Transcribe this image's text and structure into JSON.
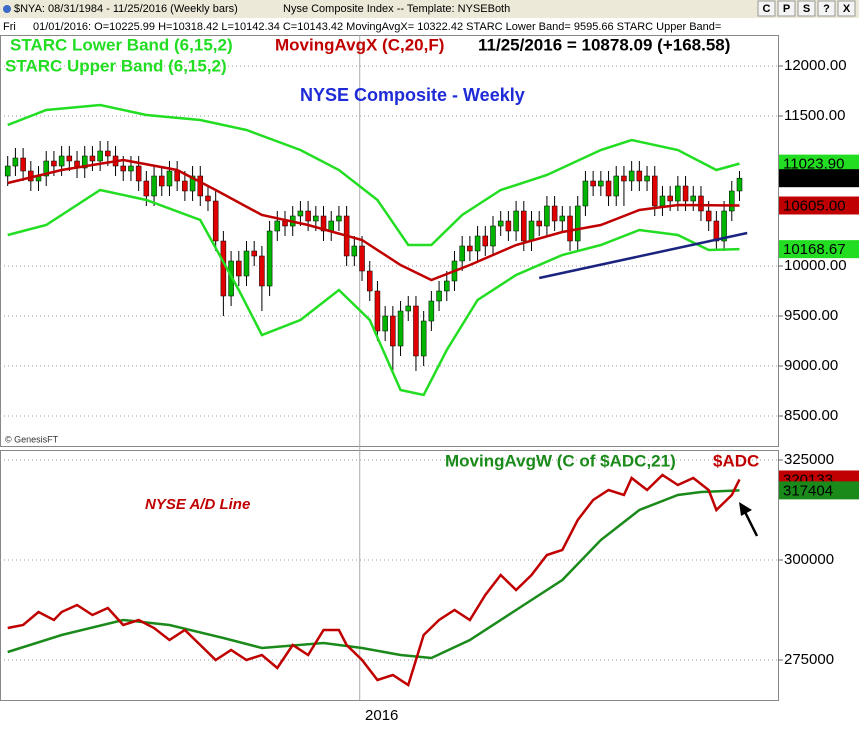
{
  "header": {
    "symbol": "$NYA: 08/31/1984 - 11/25/2016 (Weekly bars)",
    "template": "Nyse Composite Index -- Template: NYSEBoth",
    "day": "Fri",
    "cursor": "01/01/2016: O=10225.99 H=10318.42 L=10142.34 C=10143.42 MovingAvgX= 10322.42 STARC Lower Band= 9595.66 STARC Upper Band=",
    "buttons": [
      "C",
      "P",
      "S",
      "?",
      "X"
    ]
  },
  "chart_data": [
    {
      "type": "candlestick",
      "title": "NYSE Composite - Weekly",
      "readout": "11/25/2016 = 10878.09 (+168.58)",
      "watermark": "© GenesisFT",
      "up_color": "#00b400",
      "down_color": "#e00000",
      "open": [
        10900,
        11000,
        11080,
        10950,
        10850,
        10900,
        11050,
        11000,
        11100,
        11050,
        10980,
        11100,
        11050,
        11150,
        11100,
        11000,
        10950,
        11000,
        10850,
        10700,
        10900,
        10800,
        10950,
        10850,
        10750,
        10900,
        10700,
        10650,
        10250,
        9700,
        10050,
        9900,
        10150,
        10100,
        9800,
        10350,
        10450,
        10400,
        10500,
        10550,
        10450,
        10500,
        10350,
        10450,
        10500,
        10100,
        10200,
        9950,
        9750,
        9350,
        9500,
        9200,
        9550,
        9600,
        9100,
        9450,
        9650,
        9750,
        9850,
        10050,
        10200,
        10150,
        10300,
        10200,
        10400,
        10450,
        10350,
        10550,
        10250,
        10450,
        10400,
        10600,
        10450,
        10500,
        10250,
        10600,
        10850,
        10800,
        10850,
        10700,
        10900,
        10850,
        10950,
        10850,
        10900,
        10600,
        10700,
        10650,
        10800,
        10650,
        10700,
        10550,
        10450,
        10250,
        10550,
        10750
      ],
      "high": [
        11100,
        11180,
        11180,
        11050,
        11000,
        11150,
        11150,
        11200,
        11200,
        11150,
        11200,
        11200,
        11250,
        11250,
        11200,
        11100,
        11100,
        11100,
        10950,
        11000,
        11000,
        11050,
        11050,
        10950,
        11000,
        11000,
        10800,
        10750,
        10350,
        10150,
        10150,
        10250,
        10250,
        10200,
        10450,
        10550,
        10550,
        10600,
        10650,
        10650,
        10600,
        10600,
        10550,
        10600,
        10600,
        10300,
        10300,
        10050,
        9850,
        9600,
        9600,
        9650,
        9700,
        9700,
        9550,
        9750,
        9850,
        9950,
        10150,
        10300,
        10300,
        10400,
        10400,
        10500,
        10550,
        10550,
        10650,
        10650,
        10550,
        10550,
        10700,
        10700,
        10600,
        10600,
        10700,
        10950,
        10950,
        10950,
        10950,
        11000,
        11000,
        11050,
        11050,
        11000,
        11000,
        10800,
        10800,
        10900,
        10900,
        10800,
        10800,
        10650,
        10550,
        10650,
        10850,
        10950
      ],
      "low": [
        10800,
        10900,
        10850,
        10750,
        10750,
        10800,
        10900,
        10900,
        10950,
        10880,
        10880,
        10950,
        10950,
        11000,
        10900,
        10850,
        10850,
        10750,
        10600,
        10600,
        10700,
        10700,
        10750,
        10650,
        10650,
        10600,
        10550,
        10150,
        9500,
        9600,
        9800,
        9800,
        10000,
        9550,
        9700,
        10250,
        10300,
        10300,
        10400,
        10350,
        10350,
        10250,
        10250,
        10350,
        10000,
        10000,
        9850,
        9650,
        9250,
        9250,
        8950,
        9100,
        9450,
        8950,
        9000,
        9350,
        9550,
        9650,
        9750,
        9950,
        10050,
        10050,
        10100,
        10100,
        10300,
        10250,
        10250,
        10150,
        10150,
        10300,
        10300,
        10350,
        10350,
        10150,
        10150,
        10500,
        10700,
        10700,
        10600,
        10600,
        10600,
        10750,
        10750,
        10750,
        10500,
        10500,
        10550,
        10550,
        10550,
        10550,
        10450,
        10350,
        10150,
        10150,
        10450,
        10650
      ],
      "close": [
        11000,
        11080,
        10950,
        10850,
        10900,
        11050,
        11000,
        11100,
        11050,
        10980,
        11100,
        11050,
        11150,
        11100,
        11000,
        10950,
        11000,
        10850,
        10700,
        10900,
        10800,
        10950,
        10850,
        10750,
        10900,
        10700,
        10650,
        10250,
        9700,
        10050,
        9900,
        10150,
        10100,
        9800,
        10350,
        10450,
        10400,
        10500,
        10550,
        10450,
        10500,
        10350,
        10450,
        10500,
        10100,
        10200,
        9950,
        9750,
        9350,
        9500,
        9200,
        9550,
        9600,
        9100,
        9450,
        9650,
        9750,
        9850,
        10050,
        10200,
        10150,
        10300,
        10200,
        10400,
        10450,
        10350,
        10550,
        10250,
        10450,
        10400,
        10600,
        10450,
        10500,
        10250,
        10600,
        10850,
        10800,
        10850,
        10700,
        10900,
        10850,
        10950,
        10850,
        10900,
        10600,
        10700,
        10650,
        10800,
        10650,
        10700,
        10550,
        10450,
        10250,
        10550,
        10750,
        10878.09
      ],
      "series": [
        {
          "name": "STARC Lower Band (6,15,2)",
          "color": "#22dd22",
          "x": [
            0,
            5,
            12,
            18,
            25,
            30,
            33,
            38,
            43,
            47,
            51,
            54,
            57,
            61,
            66,
            72,
            77,
            82,
            87,
            91,
            95
          ],
          "values": [
            10310,
            10410,
            10760,
            10660,
            10460,
            9760,
            9310,
            9460,
            9760,
            9460,
            8760,
            8710,
            9160,
            9660,
            9910,
            10110,
            10210,
            10360,
            10310,
            10160,
            10168.67
          ]
        },
        {
          "name": "MovingAvgX (C,20,F)",
          "color": "#c00000",
          "x": [
            0,
            7,
            15,
            22,
            27,
            33,
            39,
            46,
            51,
            55,
            60,
            66,
            72,
            77,
            82,
            87,
            95
          ],
          "values": [
            10830,
            10960,
            11060,
            10960,
            10760,
            10510,
            10410,
            10260,
            10010,
            9860,
            10010,
            10210,
            10340,
            10410,
            10560,
            10610,
            10605
          ],
          "value_labels": [
            null,
            null,
            null,
            null,
            null,
            null,
            null,
            null,
            null,
            null,
            null,
            null,
            null,
            null,
            null,
            null,
            "10605.00"
          ]
        },
        {
          "name": "STARC Upper Band (6,15,2)",
          "color": "#22dd22",
          "x": [
            0,
            5,
            12,
            18,
            25,
            31,
            38,
            43,
            48,
            52,
            55,
            59,
            64,
            70,
            77,
            81,
            87,
            92,
            95
          ],
          "values": [
            11410,
            11560,
            11610,
            11510,
            11460,
            11360,
            11160,
            10960,
            10660,
            10210,
            10210,
            10510,
            10760,
            10910,
            11160,
            11260,
            11160,
            10960,
            11023.9
          ],
          "value_labels": [
            null,
            null,
            null,
            null,
            null,
            null,
            null,
            null,
            null,
            null,
            null,
            null,
            null,
            null,
            null,
            null,
            null,
            null,
            "11023.90"
          ]
        }
      ],
      "trendline": {
        "color": "#1a237e",
        "x": [
          69,
          96
        ],
        "values": [
          9880,
          10330
        ]
      },
      "xlim": [
        -1,
        100
      ],
      "ylim": [
        8200,
        12310
      ],
      "yticks": [
        {
          "value": 8500,
          "label": "8500.00"
        },
        {
          "value": 9000,
          "label": "9000.00"
        },
        {
          "value": 9500,
          "label": "9500.00"
        },
        {
          "value": 10000,
          "label": "10000.00"
        },
        {
          "value": 11500,
          "label": "11500.00"
        },
        {
          "value": 12000,
          "label": "12000.00"
        }
      ],
      "grid": true
    },
    {
      "type": "line",
      "annotation": "NYSE A/D Line",
      "series": [
        {
          "name": "MovingAvgW (C of $ADC,21)",
          "color": "#1a8a1a",
          "x": [
            0,
            7,
            15,
            21,
            28,
            33,
            41,
            46,
            51,
            55,
            60,
            66,
            72,
            77,
            82,
            87,
            90,
            95
          ],
          "values": [
            277000,
            281250,
            285000,
            283750,
            280500,
            278000,
            279250,
            278000,
            276250,
            275500,
            280000,
            287500,
            295000,
            305000,
            312500,
            316250,
            317000,
            317404
          ]
        },
        {
          "name": "$ADC",
          "color": "#c00000",
          "x": [
            0,
            2,
            4,
            6,
            7,
            9,
            11,
            13,
            15,
            17,
            19,
            21,
            23,
            25,
            27,
            29,
            31,
            33,
            35,
            37,
            39,
            41,
            43,
            44,
            46,
            48,
            50,
            52,
            54,
            56,
            58,
            60,
            62,
            64,
            66,
            68,
            70,
            72,
            74,
            76,
            78,
            80,
            81,
            83,
            85,
            87,
            89,
            91,
            92,
            94,
            95
          ],
          "values": [
            283000,
            283750,
            287000,
            285000,
            287000,
            288750,
            286250,
            288000,
            283750,
            285000,
            283000,
            280000,
            282500,
            278750,
            275000,
            277500,
            275000,
            276250,
            273000,
            278750,
            276250,
            282500,
            282500,
            278750,
            275000,
            270000,
            271250,
            268750,
            281250,
            285000,
            287500,
            285000,
            291250,
            296250,
            292500,
            296250,
            301250,
            302500,
            310000,
            315000,
            317500,
            316250,
            320500,
            317500,
            321250,
            318750,
            320500,
            317500,
            312500,
            316250,
            320133
          ]
        }
      ],
      "xlim": [
        -1,
        100
      ],
      "ylim": [
        265000,
        327500
      ],
      "yticks": [
        275000,
        300000,
        325000
      ],
      "xticks": [
        {
          "value": 45.7,
          "label": "2016"
        }
      ],
      "grid": true
    }
  ]
}
